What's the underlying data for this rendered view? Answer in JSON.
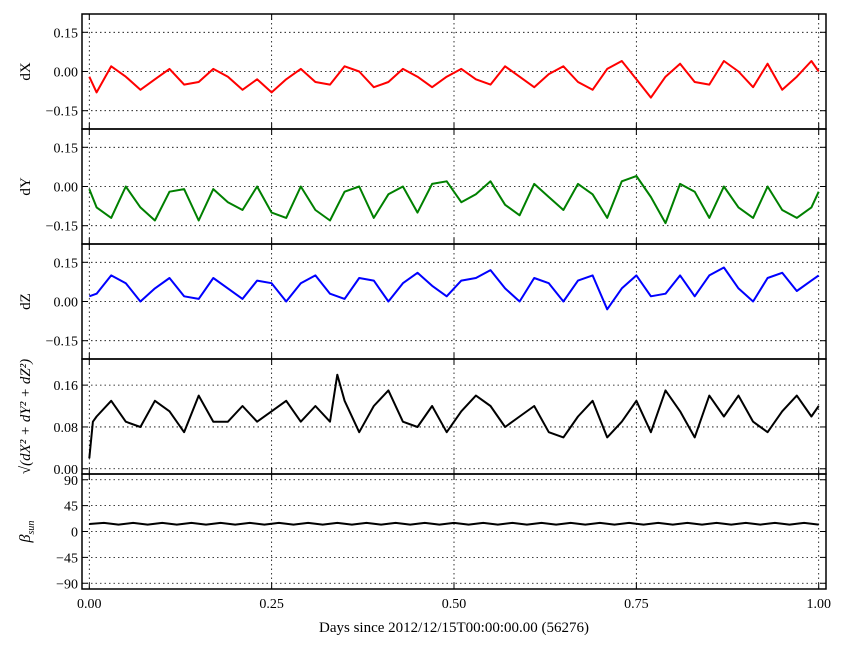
{
  "chart_data": {
    "type": "line",
    "xlabel": "Days since 2012/12/15T00:00:00.00 (56276)",
    "xlim": [
      -0.01,
      1.01
    ],
    "xticks": [
      0.0,
      0.25,
      0.5,
      0.75,
      1.0
    ],
    "xtick_labels": [
      "0.00",
      "0.25",
      "0.50",
      "0.75",
      "1.00"
    ],
    "grid": true,
    "panels": [
      {
        "id": "dx",
        "ylabel": "dX",
        "ylim": [
          -0.22,
          0.22
        ],
        "yticks": [
          -0.15,
          0.0,
          0.15
        ],
        "ytick_labels": [
          "−0.15",
          "0.00",
          "0.15"
        ],
        "color": "#ff0000",
        "series": [
          {
            "x": [
              0.0,
              0.01,
              0.03,
              0.05,
              0.07,
              0.09,
              0.11,
              0.13,
              0.15,
              0.17,
              0.19,
              0.21,
              0.23,
              0.25,
              0.27,
              0.29,
              0.31,
              0.33,
              0.35,
              0.37,
              0.39,
              0.41,
              0.43,
              0.45,
              0.47,
              0.49,
              0.51,
              0.53,
              0.55,
              0.57,
              0.59,
              0.61,
              0.63,
              0.65,
              0.67,
              0.69,
              0.71,
              0.73,
              0.75,
              0.77,
              0.79,
              0.81,
              0.83,
              0.85,
              0.87,
              0.89,
              0.91,
              0.93,
              0.95,
              0.97,
              0.99,
              1.0
            ],
            "y": [
              -0.02,
              -0.08,
              0.02,
              -0.02,
              -0.07,
              -0.03,
              0.01,
              -0.05,
              -0.04,
              0.01,
              -0.02,
              -0.07,
              -0.03,
              -0.08,
              -0.03,
              0.01,
              -0.04,
              -0.05,
              0.02,
              0.0,
              -0.06,
              -0.04,
              0.01,
              -0.02,
              -0.06,
              -0.02,
              0.01,
              -0.03,
              -0.05,
              0.02,
              -0.02,
              -0.06,
              -0.01,
              0.02,
              -0.04,
              -0.07,
              0.01,
              0.04,
              -0.03,
              -0.1,
              -0.02,
              0.03,
              -0.04,
              -0.05,
              0.04,
              0.0,
              -0.06,
              0.03,
              -0.07,
              -0.02,
              0.04,
              0.0
            ]
          }
        ]
      },
      {
        "id": "dy",
        "ylabel": "dY",
        "ylim": [
          -0.22,
          0.22
        ],
        "yticks": [
          -0.15,
          0.0,
          0.15
        ],
        "ytick_labels": [
          "−0.15",
          "0.00",
          "0.15"
        ],
        "color": "#008000",
        "series": [
          {
            "x": [
              0.0,
              0.01,
              0.03,
              0.05,
              0.07,
              0.09,
              0.11,
              0.13,
              0.15,
              0.17,
              0.19,
              0.21,
              0.23,
              0.25,
              0.27,
              0.29,
              0.31,
              0.33,
              0.35,
              0.37,
              0.39,
              0.41,
              0.43,
              0.45,
              0.47,
              0.49,
              0.51,
              0.53,
              0.55,
              0.57,
              0.59,
              0.61,
              0.63,
              0.65,
              0.67,
              0.69,
              0.71,
              0.73,
              0.75,
              0.77,
              0.79,
              0.81,
              0.83,
              0.85,
              0.87,
              0.89,
              0.91,
              0.93,
              0.95,
              0.97,
              0.99,
              1.0
            ],
            "y": [
              -0.01,
              -0.08,
              -0.12,
              0.0,
              -0.08,
              -0.13,
              -0.02,
              -0.01,
              -0.13,
              -0.01,
              -0.06,
              -0.09,
              0.0,
              -0.1,
              -0.12,
              0.0,
              -0.09,
              -0.13,
              -0.02,
              0.0,
              -0.12,
              -0.03,
              0.0,
              -0.1,
              0.01,
              0.02,
              -0.06,
              -0.03,
              0.02,
              -0.07,
              -0.11,
              0.01,
              -0.04,
              -0.09,
              0.01,
              -0.03,
              -0.12,
              0.02,
              0.04,
              -0.04,
              -0.14,
              0.01,
              -0.02,
              -0.12,
              0.0,
              -0.08,
              -0.12,
              0.0,
              -0.09,
              -0.12,
              -0.08,
              -0.02
            ]
          }
        ]
      },
      {
        "id": "dz",
        "ylabel": "dZ",
        "ylim": [
          -0.22,
          0.22
        ],
        "yticks": [
          -0.15,
          0.0,
          0.15
        ],
        "ytick_labels": [
          "−0.15",
          "0.00",
          "0.15"
        ],
        "color": "#0000ff",
        "series": [
          {
            "x": [
              0.0,
              0.01,
              0.03,
              0.05,
              0.07,
              0.09,
              0.11,
              0.13,
              0.15,
              0.17,
              0.19,
              0.21,
              0.23,
              0.25,
              0.27,
              0.29,
              0.31,
              0.33,
              0.35,
              0.37,
              0.39,
              0.41,
              0.43,
              0.45,
              0.47,
              0.49,
              0.51,
              0.53,
              0.55,
              0.57,
              0.59,
              0.61,
              0.63,
              0.65,
              0.67,
              0.69,
              0.71,
              0.73,
              0.75,
              0.77,
              0.79,
              0.81,
              0.83,
              0.85,
              0.87,
              0.89,
              0.91,
              0.93,
              0.95,
              0.97,
              0.99,
              1.0
            ],
            "y": [
              0.02,
              0.03,
              0.1,
              0.07,
              0.0,
              0.05,
              0.09,
              0.02,
              0.01,
              0.09,
              0.05,
              0.01,
              0.08,
              0.07,
              0.0,
              0.07,
              0.1,
              0.03,
              0.01,
              0.09,
              0.08,
              0.0,
              0.07,
              0.11,
              0.06,
              0.02,
              0.08,
              0.09,
              0.12,
              0.05,
              0.0,
              0.09,
              0.07,
              0.0,
              0.08,
              0.1,
              -0.03,
              0.05,
              0.1,
              0.02,
              0.03,
              0.1,
              0.02,
              0.1,
              0.13,
              0.05,
              0.0,
              0.09,
              0.11,
              0.04,
              0.08,
              0.1
            ]
          }
        ]
      },
      {
        "id": "mag",
        "ylabel": "√(dX² + dY² + dZ²)",
        "ylim": [
          -0.01,
          0.21
        ],
        "yticks": [
          0.0,
          0.08,
          0.16
        ],
        "ytick_labels": [
          "0.00",
          "0.08",
          "0.16"
        ],
        "color": "#000000",
        "series": [
          {
            "x": [
              0.0,
              0.005,
              0.01,
              0.03,
              0.05,
              0.07,
              0.09,
              0.11,
              0.13,
              0.15,
              0.17,
              0.19,
              0.21,
              0.23,
              0.25,
              0.27,
              0.29,
              0.31,
              0.33,
              0.34,
              0.35,
              0.37,
              0.39,
              0.41,
              0.43,
              0.45,
              0.47,
              0.49,
              0.51,
              0.53,
              0.55,
              0.57,
              0.59,
              0.61,
              0.63,
              0.65,
              0.67,
              0.69,
              0.71,
              0.73,
              0.75,
              0.77,
              0.79,
              0.81,
              0.83,
              0.85,
              0.87,
              0.89,
              0.91,
              0.93,
              0.95,
              0.97,
              0.99,
              1.0
            ],
            "y": [
              0.02,
              0.09,
              0.1,
              0.13,
              0.09,
              0.08,
              0.13,
              0.11,
              0.07,
              0.14,
              0.09,
              0.09,
              0.12,
              0.09,
              0.11,
              0.13,
              0.09,
              0.12,
              0.09,
              0.18,
              0.13,
              0.07,
              0.12,
              0.15,
              0.09,
              0.08,
              0.12,
              0.07,
              0.11,
              0.14,
              0.12,
              0.08,
              0.1,
              0.12,
              0.07,
              0.06,
              0.1,
              0.13,
              0.06,
              0.09,
              0.13,
              0.07,
              0.15,
              0.11,
              0.06,
              0.14,
              0.1,
              0.14,
              0.09,
              0.07,
              0.11,
              0.14,
              0.1,
              0.12
            ]
          }
        ]
      },
      {
        "id": "beta",
        "ylabel": "βsun",
        "ylim": [
          -100,
          100
        ],
        "yticks": [
          -90,
          -45,
          0,
          45,
          90
        ],
        "ytick_labels": [
          "−90",
          "−45",
          "0",
          "45",
          "90"
        ],
        "color": "#000000",
        "series": [
          {
            "x": [
              0.0,
              0.02,
              0.04,
              0.06,
              0.08,
              0.1,
              0.12,
              0.14,
              0.16,
              0.18,
              0.2,
              0.22,
              0.24,
              0.26,
              0.28,
              0.3,
              0.32,
              0.34,
              0.36,
              0.38,
              0.4,
              0.42,
              0.44,
              0.46,
              0.48,
              0.5,
              0.52,
              0.54,
              0.56,
              0.58,
              0.6,
              0.62,
              0.64,
              0.66,
              0.68,
              0.7,
              0.72,
              0.74,
              0.76,
              0.78,
              0.8,
              0.82,
              0.84,
              0.86,
              0.88,
              0.9,
              0.92,
              0.94,
              0.96,
              0.98,
              1.0
            ],
            "y": [
              13,
              15,
              12,
              15,
              12,
              15,
              12,
              15,
              12,
              15,
              12,
              15,
              12,
              15,
              12,
              15,
              12,
              15,
              12,
              15,
              12,
              15,
              12,
              15,
              12,
              15,
              12,
              15,
              12,
              15,
              12,
              15,
              12,
              15,
              12,
              15,
              12,
              15,
              12,
              15,
              12,
              15,
              12,
              15,
              12,
              15,
              12,
              15,
              12,
              15,
              12
            ]
          }
        ]
      }
    ]
  }
}
